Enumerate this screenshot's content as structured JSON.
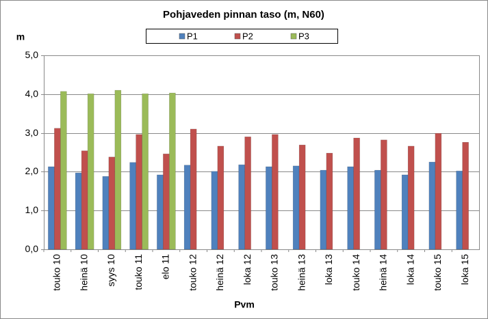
{
  "chart_data": {
    "type": "bar",
    "title": "Pohjaveden pinnan taso (m, N60)",
    "y_label": "m",
    "x_label": "Pvm",
    "categories": [
      "touko 10",
      "heinä 10",
      "syys 10",
      "touko 11",
      "elo 11",
      "touko 12",
      "heinä 12",
      "loka 12",
      "touko 13",
      "heinä 13",
      "loka 13",
      "touko 14",
      "heinä 14",
      "loka 14",
      "touko 15",
      "loka 15"
    ],
    "series": [
      {
        "name": "P1",
        "color": "#4f81bd",
        "values": [
          2.13,
          1.97,
          1.88,
          2.24,
          1.92,
          2.17,
          2.01,
          2.18,
          2.13,
          2.15,
          2.04,
          2.13,
          2.04,
          1.92,
          2.25,
          2.02
        ]
      },
      {
        "name": "P2",
        "color": "#c0504d",
        "values": [
          3.12,
          2.54,
          2.38,
          2.96,
          2.46,
          3.1,
          2.66,
          2.9,
          2.96,
          2.69,
          2.48,
          2.87,
          2.82,
          2.66,
          2.99,
          2.76
        ]
      },
      {
        "name": "P3",
        "color": "#9bbb59",
        "values": [
          4.07,
          4.01,
          4.1,
          4.01,
          4.03,
          null,
          null,
          null,
          null,
          null,
          null,
          null,
          null,
          null,
          null,
          null
        ]
      }
    ],
    "ylim": [
      0,
      5
    ],
    "yticks": [
      {
        "value": 0,
        "label": "0,0"
      },
      {
        "value": 1,
        "label": "1,0"
      },
      {
        "value": 2,
        "label": "2,0"
      },
      {
        "value": 3,
        "label": "3,0"
      },
      {
        "value": 4,
        "label": "4,0"
      },
      {
        "value": 5,
        "label": "5,0"
      }
    ],
    "grid": true,
    "legend": "top"
  }
}
